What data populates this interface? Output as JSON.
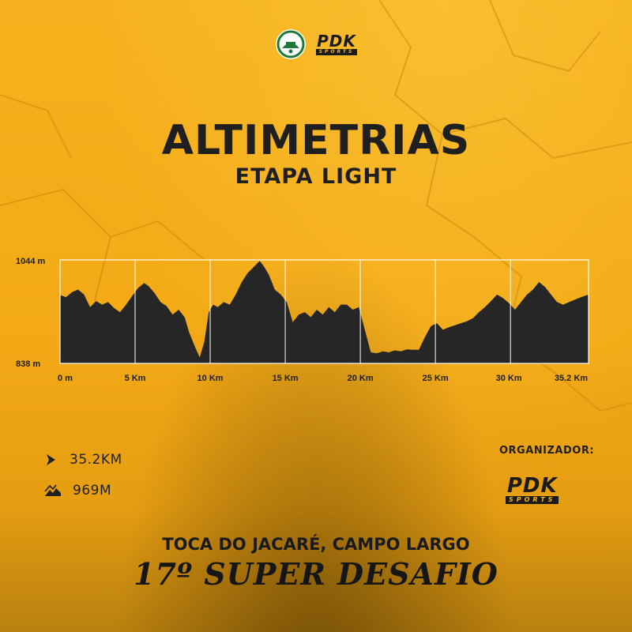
{
  "header": {
    "club_logo": "club-emblem-logo",
    "sponsor_logo": {
      "main": "PDK",
      "sub": "SPORTS"
    }
  },
  "title": "ALTIMETRIAS",
  "subtitle": "ETAPA LIGHT",
  "chart_data": {
    "type": "area",
    "title": "",
    "xlabel": "",
    "ylabel": "",
    "ylim": [
      838,
      1044
    ],
    "xlim": [
      0,
      35.2
    ],
    "y_tick_labels": [
      "1044 m",
      "838 m"
    ],
    "x_tick_values": [
      0,
      5,
      10,
      15,
      20,
      25,
      30,
      35.2
    ],
    "x_tick_labels": [
      "0 m",
      "5 Km",
      "10 Km",
      "15 Km",
      "20 Km",
      "25 Km",
      "30 Km",
      "35.2 Km"
    ],
    "grid": true,
    "fill_color": "#262626",
    "grid_color": "#ffffff",
    "x": [
      0,
      0.4,
      0.8,
      1.2,
      1.6,
      2.0,
      2.4,
      2.8,
      3.2,
      3.6,
      4.0,
      4.4,
      4.8,
      5.2,
      5.6,
      5.9,
      6.3,
      6.7,
      7.1,
      7.5,
      7.9,
      8.3,
      8.6,
      9.0,
      9.3,
      9.6,
      9.9,
      10.2,
      10.5,
      10.9,
      11.3,
      11.7,
      12.1,
      12.5,
      12.9,
      13.3,
      13.6,
      13.9,
      14.3,
      14.7,
      15.1,
      15.5,
      15.9,
      16.3,
      16.7,
      17.1,
      17.5,
      17.9,
      18.3,
      18.7,
      19.1,
      19.5,
      19.9,
      20.3,
      20.7,
      21.1,
      21.5,
      21.9,
      22.3,
      22.7,
      23.1,
      23.5,
      23.9,
      24.3,
      24.7,
      25.1,
      25.5,
      25.9,
      26.3,
      26.7,
      27.1,
      27.5,
      27.9,
      28.3,
      28.7,
      29.1,
      29.5,
      29.9,
      30.3,
      30.7,
      31.1,
      31.5,
      31.9,
      32.3,
      32.7,
      33.1,
      33.5,
      33.9,
      34.3,
      34.7,
      35.2
    ],
    "y": [
      974,
      970,
      980,
      985,
      975,
      950,
      962,
      955,
      960,
      948,
      940,
      955,
      972,
      988,
      998,
      992,
      978,
      960,
      952,
      935,
      945,
      930,
      900,
      870,
      850,
      880,
      940,
      955,
      950,
      960,
      955,
      975,
      1000,
      1018,
      1030,
      1042,
      1030,
      1015,
      985,
      975,
      960,
      920,
      935,
      940,
      930,
      945,
      935,
      950,
      940,
      955,
      955,
      945,
      950,
      905,
      860,
      858,
      862,
      860,
      864,
      862,
      866,
      865,
      865,
      890,
      912,
      918,
      905,
      910,
      914,
      918,
      922,
      928,
      940,
      950,
      962,
      975,
      968,
      958,
      945,
      960,
      975,
      985,
      1000,
      990,
      975,
      960,
      955,
      960,
      965,
      970,
      975
    ]
  },
  "stats": {
    "distance": {
      "icon": "chevron-right-icon",
      "value": "35.2KM"
    },
    "elevation": {
      "icon": "elevation-gain-icon",
      "value": "969M"
    }
  },
  "organizer": {
    "label": "ORGANIZADOR:",
    "logo": {
      "main": "PDK",
      "sub": "SPORTS"
    }
  },
  "location": "TOCA DO JACARÉ, CAMPO LARGO",
  "event": "17º SUPER DESAFIO",
  "colors": {
    "background": "#f3a916",
    "text": "#1f1f1f"
  }
}
